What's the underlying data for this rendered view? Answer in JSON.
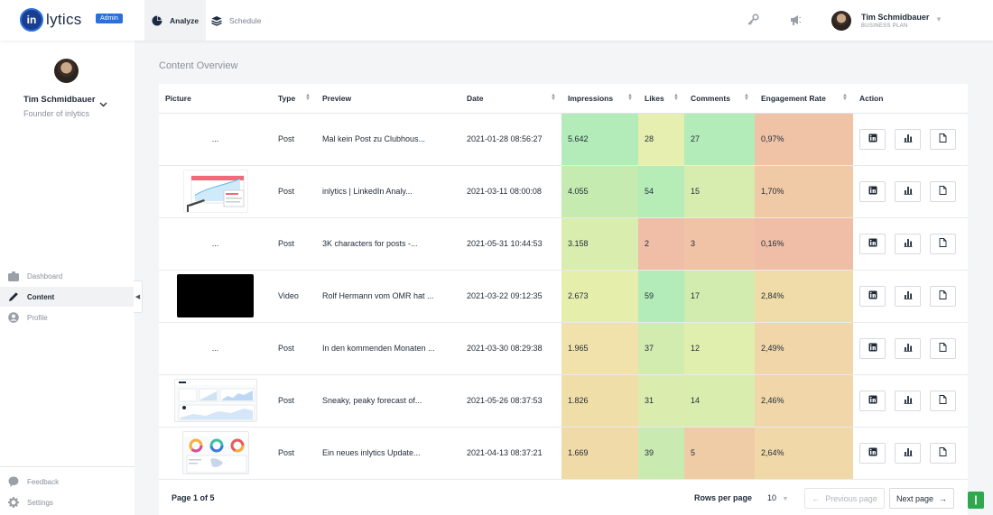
{
  "header": {
    "logo_mark": "in",
    "logo_text": "lytics",
    "admin_badge": "Admin",
    "tabs": [
      {
        "label": "Analyze",
        "icon": "pie-chart-icon",
        "active": true
      },
      {
        "label": "Schedule",
        "icon": "layers-icon",
        "active": false
      }
    ],
    "icons": [
      "key-icon",
      "megaphone-icon"
    ],
    "user": {
      "name": "Tim Schmidbauer",
      "plan": "BUSINESS PLAN"
    }
  },
  "sidebar": {
    "profile_name": "Tim Schmidbauer",
    "profile_role": "Founder of inlytics",
    "nav": [
      {
        "label": "Dashboard",
        "icon": "dashboard-icon",
        "active": false
      },
      {
        "label": "Content",
        "icon": "pencil-icon",
        "active": true
      },
      {
        "label": "Profile",
        "icon": "user-circle-icon",
        "active": false
      }
    ],
    "bottom": [
      {
        "label": "Feedback",
        "icon": "chat-bubble-icon"
      },
      {
        "label": "Settings",
        "icon": "gear-icon"
      }
    ]
  },
  "content": {
    "title": "Content Overview",
    "columns": [
      "Picture",
      "Type",
      "Preview",
      "Date",
      "Impressions",
      "Likes",
      "Comments",
      "Engagement Rate",
      "Action"
    ],
    "rows": [
      {
        "picture": "...",
        "thumb": "none",
        "type": "Post",
        "preview": "Mal kein Post zu Clubhous...",
        "date": "2021-01-28 08:56:27",
        "impressions": "5.642",
        "likes": "28",
        "comments": "27",
        "engagement": "0,97%",
        "colors": {
          "impressions": "#b3ecb8",
          "likes": "#e6efb0",
          "comments": "#b3ecb8",
          "engagement": "#f0c2a6"
        }
      },
      {
        "picture": "",
        "thumb": "chart",
        "type": "Post",
        "preview": "inlytics | LinkedIn Analy...",
        "date": "2021-03-11 08:00:08",
        "impressions": "4.055",
        "likes": "54",
        "comments": "15",
        "engagement": "1,70%",
        "colors": {
          "impressions": "#c5ebb0",
          "likes": "#b6ecb6",
          "comments": "#d7edb0",
          "engagement": "#f0caa6"
        }
      },
      {
        "picture": "...",
        "thumb": "none",
        "type": "Post",
        "preview": "3K characters for posts -...",
        "date": "2021-05-31 10:44:53",
        "impressions": "3.158",
        "likes": "2",
        "comments": "3",
        "engagement": "0,16%",
        "colors": {
          "impressions": "#d9edae",
          "likes": "#f0bea6",
          "comments": "#f0c2a6",
          "engagement": "#f0bea6"
        }
      },
      {
        "picture": "",
        "thumb": "black",
        "type": "Video",
        "preview": "Rolf Hermann vom OMR hat ...",
        "date": "2021-03-22 09:12:35",
        "impressions": "2.673",
        "likes": "59",
        "comments": "17",
        "engagement": "2,84%",
        "colors": {
          "impressions": "#e6eeac",
          "likes": "#b3ecb8",
          "comments": "#d2ecb0",
          "engagement": "#f0dca8"
        }
      },
      {
        "picture": "...",
        "thumb": "none",
        "type": "Post",
        "preview": "In den kommenden Monaten ...",
        "date": "2021-03-30 08:29:38",
        "impressions": "1.965",
        "likes": "37",
        "comments": "12",
        "engagement": "2,49%",
        "colors": {
          "impressions": "#f0e2aa",
          "likes": "#d2ecb0",
          "comments": "#e0eeae",
          "engagement": "#f0d6a8"
        }
      },
      {
        "picture": "",
        "thumb": "dash",
        "type": "Post",
        "preview": "Sneaky, peaky forecast of...",
        "date": "2021-05-26 08:37:53",
        "impressions": "1.826",
        "likes": "31",
        "comments": "14",
        "engagement": "2,46%",
        "colors": {
          "impressions": "#f0dea8",
          "likes": "#dbedae",
          "comments": "#d9edae",
          "engagement": "#f0d6a8"
        }
      },
      {
        "picture": "",
        "thumb": "donuts",
        "type": "Post",
        "preview": "Ein neues inlytics Update...",
        "date": "2021-04-13 08:37:21",
        "impressions": "1.669",
        "likes": "39",
        "comments": "5",
        "engagement": "2,64%",
        "colors": {
          "impressions": "#f0daa8",
          "likes": "#c9ebb2",
          "comments": "#f0cca6",
          "engagement": "#f0d8a8"
        }
      }
    ],
    "action_icons": [
      "linkedin-icon",
      "bar-chart-icon",
      "document-icon"
    ]
  },
  "pagination": {
    "page_info": "Page 1 of 5",
    "rows_label": "Rows per page",
    "rows_value": "10",
    "prev_label": "Previous page",
    "next_label": "Next page"
  }
}
